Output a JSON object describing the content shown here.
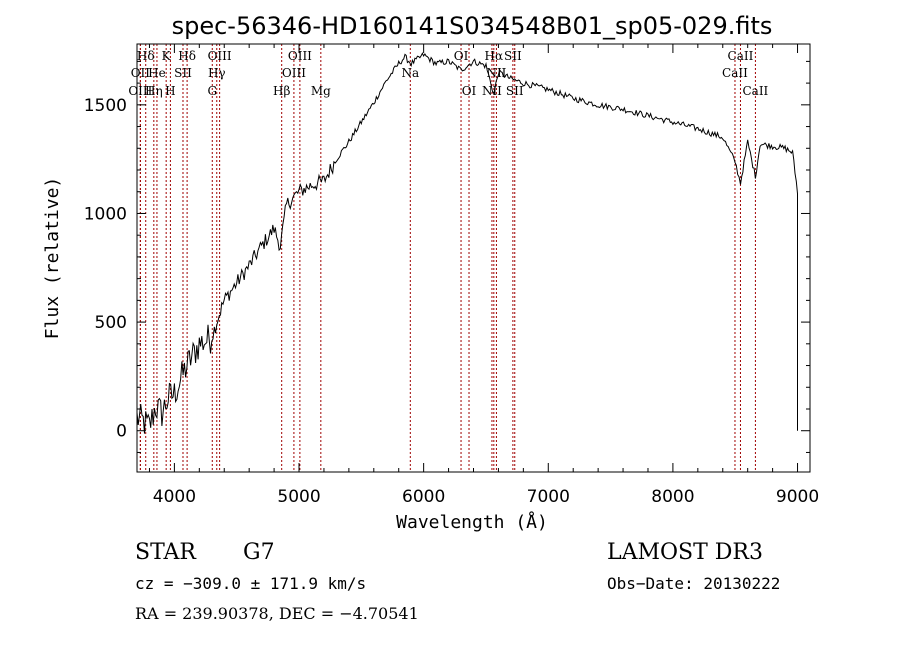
{
  "colors": {
    "background": "#ffffff",
    "ink": "#000000",
    "line_marker": "#a00000"
  },
  "chart_data": {
    "type": "line",
    "title": "spec-56346-HD160141S034548B01_sp05-029.fits",
    "xlabel": "Wavelength (Å)",
    "ylabel": "Flux (relative)",
    "xlim": [
      3700,
      9100
    ],
    "ylim": [
      -190,
      1780
    ],
    "xticks": [
      4000,
      5000,
      6000,
      7000,
      8000,
      9000
    ],
    "yticks": [
      0,
      500,
      1000,
      1500
    ],
    "series": [
      {
        "name": "spectrum",
        "points": [
          [
            3700,
            60
          ],
          [
            3750,
            40
          ],
          [
            3800,
            20
          ],
          [
            3850,
            110
          ],
          [
            3900,
            80
          ],
          [
            3950,
            150
          ],
          [
            4000,
            170
          ],
          [
            4100,
            300
          ],
          [
            4200,
            400
          ],
          [
            4300,
            430
          ],
          [
            4350,
            520
          ],
          [
            4400,
            600
          ],
          [
            4500,
            680
          ],
          [
            4600,
            760
          ],
          [
            4700,
            850
          ],
          [
            4800,
            930
          ],
          [
            4850,
            850
          ],
          [
            4900,
            1040
          ],
          [
            5000,
            1100
          ],
          [
            5100,
            1130
          ],
          [
            5200,
            1150
          ],
          [
            5300,
            1250
          ],
          [
            5400,
            1330
          ],
          [
            5500,
            1420
          ],
          [
            5600,
            1510
          ],
          [
            5700,
            1610
          ],
          [
            5800,
            1690
          ],
          [
            5850,
            1720
          ],
          [
            5900,
            1690
          ],
          [
            6000,
            1730
          ],
          [
            6100,
            1690
          ],
          [
            6200,
            1700
          ],
          [
            6300,
            1660
          ],
          [
            6400,
            1700
          ],
          [
            6500,
            1680
          ],
          [
            6563,
            1550
          ],
          [
            6600,
            1650
          ],
          [
            6700,
            1620
          ],
          [
            6800,
            1600
          ],
          [
            7000,
            1570
          ],
          [
            7200,
            1530
          ],
          [
            7400,
            1500
          ],
          [
            7600,
            1480
          ],
          [
            7800,
            1450
          ],
          [
            8000,
            1420
          ],
          [
            8200,
            1390
          ],
          [
            8400,
            1350
          ],
          [
            8498,
            1240
          ],
          [
            8542,
            1140
          ],
          [
            8600,
            1330
          ],
          [
            8662,
            1170
          ],
          [
            8700,
            1320
          ],
          [
            8800,
            1310
          ],
          [
            8900,
            1300
          ],
          [
            8960,
            1280
          ],
          [
            9000,
            1100
          ],
          [
            9000,
            0
          ]
        ]
      }
    ],
    "line_markers": [
      {
        "label": "Hδ",
        "wavelength": 3770,
        "row": 1
      },
      {
        "label": "OII",
        "wavelength": 3727,
        "row": 2
      },
      {
        "label": "OIII",
        "wavelength": 3727,
        "row": 3
      },
      {
        "label": "He",
        "wavelength": 3860,
        "row": 2
      },
      {
        "label": "Hη",
        "wavelength": 3835,
        "row": 3
      },
      {
        "label": "K",
        "wavelength": 3934,
        "row": 1
      },
      {
        "label": "SII",
        "wavelength": 4069,
        "row": 2
      },
      {
        "label": "H",
        "wavelength": 3968,
        "row": 3
      },
      {
        "label": "Hδ",
        "wavelength": 4102,
        "row": 1
      },
      {
        "label": "OIII",
        "wavelength": 4363,
        "row": 1
      },
      {
        "label": "Hγ",
        "wavelength": 4340,
        "row": 2
      },
      {
        "label": "G",
        "wavelength": 4304,
        "row": 3
      },
      {
        "label": "Hβ",
        "wavelength": 4861,
        "row": 3
      },
      {
        "label": "OIII",
        "wavelength": 5007,
        "row": 1
      },
      {
        "label": "OIII",
        "wavelength": 4959,
        "row": 2
      },
      {
        "label": "Mg",
        "wavelength": 5175,
        "row": 3
      },
      {
        "label": "Na",
        "wavelength": 5893,
        "row": 2
      },
      {
        "label": "OI",
        "wavelength": 6300,
        "row": 1
      },
      {
        "label": "OI",
        "wavelength": 6364,
        "row": 3
      },
      {
        "label": "Hα",
        "wavelength": 6563,
        "row": 1
      },
      {
        "label": "SII",
        "wavelength": 6716,
        "row": 1
      },
      {
        "label": "NII",
        "wavelength": 6584,
        "row": 2
      },
      {
        "label": "NII",
        "wavelength": 6548,
        "row": 3
      },
      {
        "label": "SII",
        "wavelength": 6731,
        "row": 3
      },
      {
        "label": "CaII",
        "wavelength": 8542,
        "row": 1
      },
      {
        "label": "CaII",
        "wavelength": 8498,
        "row": 2
      },
      {
        "label": "CaII",
        "wavelength": 8662,
        "row": 3
      }
    ]
  },
  "info": {
    "object_class": "STAR",
    "subclass": "G7",
    "survey": "LAMOST DR3",
    "cz": "cz = −309.0 ± 171.9 km/s",
    "obs_date": "Obs−Date: 20130222",
    "coords": "RA = 239.90378, DEC =  −4.70541"
  }
}
